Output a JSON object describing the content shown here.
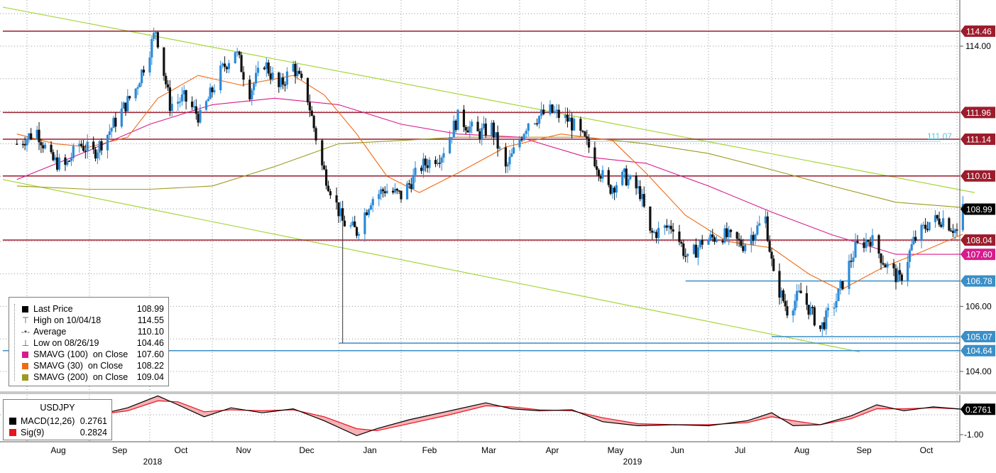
{
  "chart_data": {
    "type": "candlestick",
    "ticker": "USDJPY",
    "x_axis": {
      "months": [
        "Aug",
        "Sep",
        "Oct",
        "Nov",
        "Dec",
        "Jan",
        "Feb",
        "Mar",
        "Apr",
        "May",
        "Jun",
        "Jul",
        "Aug",
        "Sep",
        "Oct"
      ],
      "years": [
        "2018",
        "2019"
      ]
    },
    "y_axis": {
      "ticks": [
        "114.00",
        "106.00",
        "104.00"
      ],
      "ylim": [
        103.8,
        115.0
      ],
      "grid": true
    },
    "price_path": [
      [
        "2018-07-27",
        111.0
      ],
      [
        "2018-08-06",
        111.4
      ],
      [
        "2018-08-13",
        110.5
      ],
      [
        "2018-08-20",
        110.3
      ],
      [
        "2018-08-27",
        111.0
      ],
      [
        "2018-09-03",
        110.7
      ],
      [
        "2018-09-10",
        111.3
      ],
      [
        "2018-09-17",
        112.0
      ],
      [
        "2018-09-24",
        112.7
      ],
      [
        "2018-10-01",
        113.9
      ],
      [
        "2018-10-04",
        114.5
      ],
      [
        "2018-10-11",
        112.2
      ],
      [
        "2018-10-18",
        112.4
      ],
      [
        "2018-10-26",
        111.8
      ],
      [
        "2018-11-05",
        113.2
      ],
      [
        "2018-11-12",
        113.9
      ],
      [
        "2018-11-19",
        112.6
      ],
      [
        "2018-11-26",
        113.5
      ],
      [
        "2018-12-03",
        112.7
      ],
      [
        "2018-12-10",
        113.4
      ],
      [
        "2018-12-17",
        112.4
      ],
      [
        "2018-12-24",
        110.3
      ],
      [
        "2019-01-03",
        108.6
      ],
      [
        "2019-01-10",
        108.3
      ],
      [
        "2019-01-17",
        109.3
      ],
      [
        "2019-01-24",
        109.6
      ],
      [
        "2019-02-01",
        109.4
      ],
      [
        "2019-02-11",
        110.3
      ],
      [
        "2019-02-21",
        110.7
      ],
      [
        "2019-03-01",
        111.8
      ],
      [
        "2019-03-11",
        111.3
      ],
      [
        "2019-03-18",
        111.5
      ],
      [
        "2019-03-25",
        110.2
      ],
      [
        "2019-04-05",
        111.7
      ],
      [
        "2019-04-15",
        112.0
      ],
      [
        "2019-04-24",
        111.7
      ],
      [
        "2019-05-03",
        110.9
      ],
      [
        "2019-05-13",
        109.6
      ],
      [
        "2019-05-21",
        110.0
      ],
      [
        "2019-05-29",
        109.5
      ],
      [
        "2019-06-03",
        108.2
      ],
      [
        "2019-06-14",
        108.5
      ],
      [
        "2019-06-21",
        107.4
      ],
      [
        "2019-06-28",
        108.0
      ],
      [
        "2019-07-08",
        108.2
      ],
      [
        "2019-07-18",
        107.9
      ],
      [
        "2019-07-29",
        108.7
      ],
      [
        "2019-08-02",
        106.9
      ],
      [
        "2019-08-09",
        105.9
      ],
      [
        "2019-08-16",
        106.4
      ],
      [
        "2019-08-26",
        105.3
      ],
      [
        "2019-09-03",
        106.2
      ],
      [
        "2019-09-12",
        107.8
      ],
      [
        "2019-09-19",
        108.1
      ],
      [
        "2019-09-26",
        107.3
      ],
      [
        "2019-10-03",
        106.8
      ],
      [
        "2019-10-10",
        108.0
      ],
      [
        "2019-10-18",
        108.6
      ],
      [
        "2019-10-25",
        108.7
      ],
      [
        "2019-11-01",
        108.3
      ],
      [
        "2019-11-04",
        108.99
      ]
    ],
    "sma100_path": [
      [
        "2018-07-27",
        109.9
      ],
      [
        "2018-09-01",
        110.8
      ],
      [
        "2018-10-01",
        111.6
      ],
      [
        "2018-11-01",
        112.2
      ],
      [
        "2018-12-01",
        112.4
      ],
      [
        "2019-01-01",
        112.2
      ],
      [
        "2019-02-01",
        111.6
      ],
      [
        "2019-03-01",
        111.3
      ],
      [
        "2019-04-01",
        111.2
      ],
      [
        "2019-05-01",
        110.6
      ],
      [
        "2019-06-01",
        110.4
      ],
      [
        "2019-07-01",
        109.7
      ],
      [
        "2019-08-01",
        108.9
      ],
      [
        "2019-09-01",
        108.2
      ],
      [
        "2019-10-01",
        107.6
      ],
      [
        "2019-11-04",
        107.6
      ]
    ],
    "sma30_path": [
      [
        "2018-07-27",
        111.3
      ],
      [
        "2018-08-15",
        111.0
      ],
      [
        "2018-09-01",
        110.9
      ],
      [
        "2018-09-20",
        111.2
      ],
      [
        "2018-10-05",
        112.4
      ],
      [
        "2018-10-25",
        113.1
      ],
      [
        "2018-11-15",
        112.8
      ],
      [
        "2018-12-10",
        113.1
      ],
      [
        "2018-12-25",
        112.5
      ],
      [
        "2019-01-10",
        111.3
      ],
      [
        "2019-01-25",
        110.0
      ],
      [
        "2019-02-10",
        109.5
      ],
      [
        "2019-03-01",
        110.1
      ],
      [
        "2019-03-25",
        110.9
      ],
      [
        "2019-04-20",
        111.3
      ],
      [
        "2019-05-15",
        111.1
      ],
      [
        "2019-06-01",
        110.1
      ],
      [
        "2019-06-20",
        108.8
      ],
      [
        "2019-07-10",
        108.0
      ],
      [
        "2019-08-01",
        107.8
      ],
      [
        "2019-08-20",
        107.0
      ],
      [
        "2019-09-05",
        106.5
      ],
      [
        "2019-09-25",
        107.2
      ],
      [
        "2019-10-15",
        107.7
      ],
      [
        "2019-11-04",
        108.22
      ]
    ],
    "sma200_path": [
      [
        "2018-07-27",
        109.7
      ],
      [
        "2018-09-01",
        109.6
      ],
      [
        "2018-10-01",
        109.6
      ],
      [
        "2018-11-01",
        109.7
      ],
      [
        "2018-12-01",
        110.3
      ],
      [
        "2019-01-01",
        111.0
      ],
      [
        "2019-02-01",
        111.1
      ],
      [
        "2019-03-01",
        111.2
      ],
      [
        "2019-04-01",
        111.2
      ],
      [
        "2019-05-01",
        111.2
      ],
      [
        "2019-06-01",
        111.0
      ],
      [
        "2019-07-01",
        110.7
      ],
      [
        "2019-08-01",
        110.2
      ],
      [
        "2019-09-01",
        109.7
      ],
      [
        "2019-10-01",
        109.2
      ],
      [
        "2019-11-04",
        109.04
      ]
    ],
    "trendlines": [
      {
        "kind": "channel-upper",
        "from": [
          "2018-07-20",
          115.2
        ],
        "to": [
          "2019-11-10",
          109.5
        ]
      },
      {
        "kind": "channel-lower",
        "from": [
          "2018-07-20",
          109.9
        ],
        "to": [
          "2019-09-14",
          104.6
        ]
      }
    ],
    "horizontal_levels": [
      {
        "label": "114.46",
        "value": 114.46,
        "style": "resistance",
        "from": "2018-07-20",
        "to": "2019-11-10"
      },
      {
        "label": "111.96",
        "value": 111.96,
        "style": "resistance",
        "from": "2018-07-20",
        "to": "2019-11-10"
      },
      {
        "label": "111.14",
        "value": 111.14,
        "style": "resistance",
        "from": "2018-07-20",
        "to": "2019-11-10"
      },
      {
        "label": "110.01",
        "value": 110.01,
        "style": "resistance",
        "from": "2018-07-20",
        "to": "2019-11-10"
      },
      {
        "label": "108.04",
        "value": 108.04,
        "style": "resistance",
        "from": "2018-07-20",
        "to": "2019-11-10"
      },
      {
        "label": "106.78",
        "value": 106.78,
        "style": "support",
        "from": "2019-06-20",
        "to": "2019-11-10"
      },
      {
        "label": "105.07",
        "value": 105.07,
        "style": "support",
        "from": "2019-08-01",
        "to": "2019-11-10"
      },
      {
        "label": "",
        "value": 104.87,
        "style": "support",
        "from": "2019-01-01",
        "to": "2019-11-10"
      },
      {
        "label": "104.64",
        "value": 104.64,
        "style": "support",
        "from": "2018-07-20",
        "to": "2019-11-10"
      }
    ],
    "right_axis_labels": [
      {
        "text": "114.46",
        "value": 114.46,
        "kind": "level"
      },
      {
        "text": "111.96",
        "value": 111.96,
        "kind": "level"
      },
      {
        "text": "111.14",
        "value": 111.14,
        "kind": "level"
      },
      {
        "text": "110.01",
        "value": 110.01,
        "kind": "level"
      },
      {
        "text": "108.99",
        "value": 108.99,
        "kind": "last"
      },
      {
        "text": "108.04",
        "value": 108.04,
        "kind": "level"
      },
      {
        "text": "107.60",
        "value": 107.6,
        "kind": "sma100"
      },
      {
        "text": "106.78",
        "value": 106.78,
        "kind": "support"
      },
      {
        "text": "105.07",
        "value": 105.07,
        "kind": "support"
      },
      {
        "text": "104.64",
        "value": 104.64,
        "kind": "support"
      }
    ],
    "annotation": {
      "text": "111.07",
      "value": 111.07
    },
    "legend": [
      {
        "label": "Last Price",
        "value": "108.99",
        "color": "#000000",
        "kind": "swatch"
      },
      {
        "label": "High on 10/04/18",
        "value": "114.55",
        "glyph": "⊤",
        "kind": "glyph"
      },
      {
        "label": "Average",
        "value": "110.10",
        "glyph": "-•-",
        "kind": "glyph"
      },
      {
        "label": "Low on 08/26/19",
        "value": "104.46",
        "glyph": "⊥",
        "kind": "glyph"
      },
      {
        "label": "SMAVG (100)  on Close",
        "value": "107.60",
        "color": "#d81b8c",
        "kind": "swatch"
      },
      {
        "label": "SMAVG (30)  on Close",
        "value": "108.22",
        "color": "#f06a14",
        "kind": "swatch"
      },
      {
        "label": "SMAVG (200)  on Close",
        "value": "109.04",
        "color": "#9c9a1e",
        "kind": "swatch"
      }
    ],
    "macd": {
      "title": "USDJPY",
      "yticks": [
        "-1.00"
      ],
      "last_label": "0.2761",
      "legend": [
        {
          "label": "MACD(12,26)",
          "value": "0.2761",
          "color": "#000000"
        },
        {
          "label": "Sig(9)",
          "value": "0.2824",
          "color": "#e8141e"
        }
      ],
      "macd_path": [
        [
          "2018-07-27",
          0.35
        ],
        [
          "2018-08-15",
          0.0
        ],
        [
          "2018-09-01",
          -0.1
        ],
        [
          "2018-09-20",
          0.35
        ],
        [
          "2018-10-05",
          0.95
        ],
        [
          "2018-10-15",
          0.5
        ],
        [
          "2018-10-28",
          -0.1
        ],
        [
          "2018-11-10",
          0.35
        ],
        [
          "2018-11-25",
          0.1
        ],
        [
          "2018-12-10",
          0.3
        ],
        [
          "2018-12-25",
          -0.3
        ],
        [
          "2019-01-10",
          -1.05
        ],
        [
          "2019-01-20",
          -0.7
        ],
        [
          "2019-02-05",
          -0.25
        ],
        [
          "2019-02-25",
          0.2
        ],
        [
          "2019-03-15",
          0.6
        ],
        [
          "2019-03-28",
          0.3
        ],
        [
          "2019-04-10",
          0.2
        ],
        [
          "2019-04-25",
          0.25
        ],
        [
          "2019-05-10",
          -0.35
        ],
        [
          "2019-05-28",
          -0.55
        ],
        [
          "2019-06-15",
          -0.5
        ],
        [
          "2019-07-01",
          -0.55
        ],
        [
          "2019-07-20",
          -0.3
        ],
        [
          "2019-08-01",
          0.1
        ],
        [
          "2019-08-12",
          -0.55
        ],
        [
          "2019-08-26",
          -0.5
        ],
        [
          "2019-09-10",
          -0.05
        ],
        [
          "2019-09-22",
          0.5
        ],
        [
          "2019-10-05",
          0.2
        ],
        [
          "2019-10-20",
          0.4
        ],
        [
          "2019-11-04",
          0.2761
        ]
      ],
      "signal_path": [
        [
          "2018-07-27",
          0.3
        ],
        [
          "2018-08-15",
          0.1
        ],
        [
          "2018-09-01",
          -0.05
        ],
        [
          "2018-09-20",
          0.2
        ],
        [
          "2018-10-05",
          0.7
        ],
        [
          "2018-10-15",
          0.65
        ],
        [
          "2018-10-28",
          0.15
        ],
        [
          "2018-11-10",
          0.25
        ],
        [
          "2018-11-25",
          0.2
        ],
        [
          "2018-12-10",
          0.25
        ],
        [
          "2018-12-25",
          -0.1
        ],
        [
          "2019-01-10",
          -0.7
        ],
        [
          "2019-01-20",
          -0.8
        ],
        [
          "2019-02-05",
          -0.45
        ],
        [
          "2019-02-25",
          0.0
        ],
        [
          "2019-03-15",
          0.45
        ],
        [
          "2019-03-28",
          0.4
        ],
        [
          "2019-04-10",
          0.25
        ],
        [
          "2019-04-25",
          0.2
        ],
        [
          "2019-05-10",
          -0.15
        ],
        [
          "2019-05-28",
          -0.45
        ],
        [
          "2019-06-15",
          -0.5
        ],
        [
          "2019-07-01",
          -0.5
        ],
        [
          "2019-07-20",
          -0.4
        ],
        [
          "2019-08-01",
          -0.1
        ],
        [
          "2019-08-12",
          -0.3
        ],
        [
          "2019-08-26",
          -0.5
        ],
        [
          "2019-09-10",
          -0.2
        ],
        [
          "2019-09-22",
          0.3
        ],
        [
          "2019-10-05",
          0.3
        ],
        [
          "2019-10-20",
          0.35
        ],
        [
          "2019-11-04",
          0.2824
        ]
      ]
    },
    "colors": {
      "up_candle": "#2a8ad8",
      "down_candle": "#111111",
      "resistance_line": "#9c1c2c",
      "support_line": "#3a8fc8",
      "channel": "#a6d63a",
      "sma100": "#d81b8c",
      "sma30": "#f06a14",
      "sma200": "#9c9a1e",
      "level_label_bg": "#9c1c2c",
      "support_label_bg": "#3a8fc8",
      "sma100_label_bg": "#d81b8c",
      "annotation": "#5bc4e0"
    }
  }
}
